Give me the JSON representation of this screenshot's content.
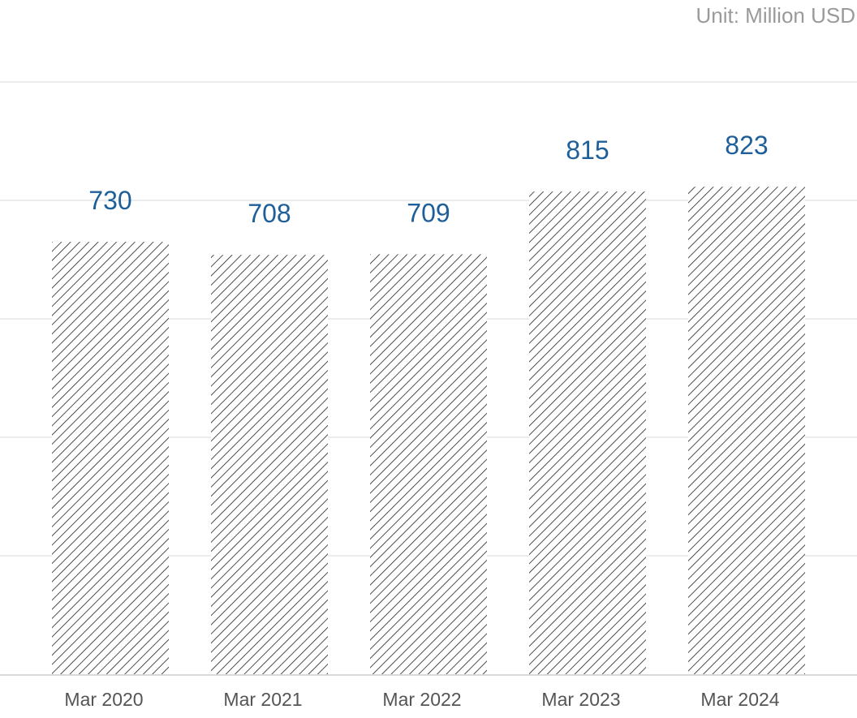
{
  "unit_label": "Unit: Million USD",
  "colors": {
    "value_label": "#1f5f99",
    "tick_label": "#555555",
    "grid": "#e6e6e6",
    "axis": "#d9d9d9",
    "bar_hatch": "#222222",
    "bar_background": "#ffffff"
  },
  "chart_data": {
    "type": "bar",
    "categories": [
      "Mar 2020",
      "Mar 2021",
      "Mar 2022",
      "Mar 2023",
      "Mar 2024"
    ],
    "values": [
      730,
      708,
      709,
      815,
      823
    ],
    "ylim": [
      0,
      1000
    ],
    "grid": true,
    "bar_fill": "diagonal-hatch",
    "data_labels": true
  }
}
